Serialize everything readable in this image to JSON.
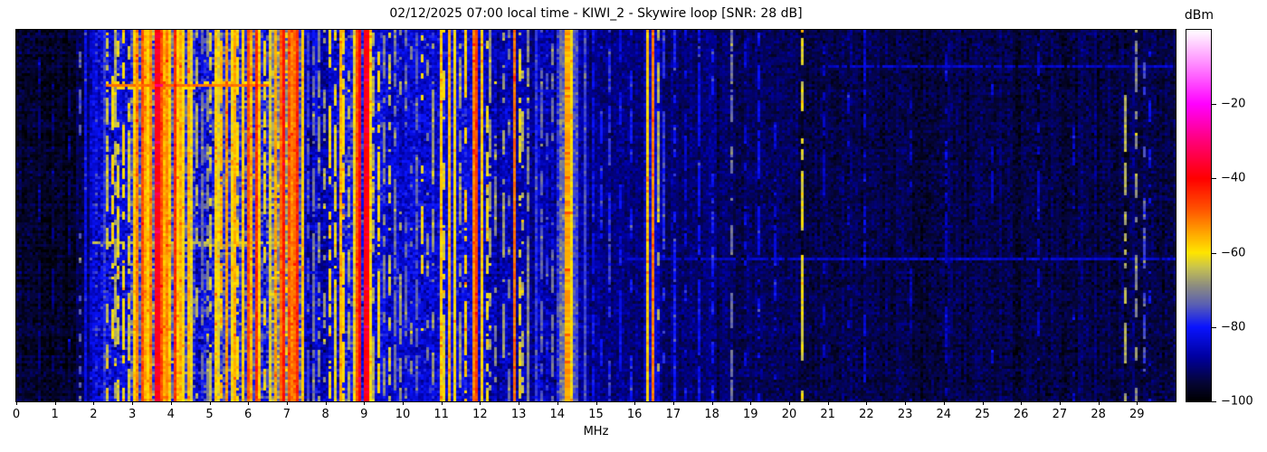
{
  "title": "02/12/2025 07:00 local time - KIWI_2 - Skywire loop [SNR: 28 dB]",
  "axes": {
    "xlabel": "MHz",
    "x_ticks": [
      0,
      1,
      2,
      3,
      4,
      5,
      6,
      7,
      8,
      9,
      10,
      11,
      12,
      13,
      14,
      15,
      16,
      17,
      18,
      19,
      20,
      21,
      22,
      23,
      24,
      25,
      26,
      27,
      28,
      29
    ]
  },
  "colorbar": {
    "label": "dBm",
    "min": -100,
    "max": 0,
    "ticks": [
      {
        "v": -20,
        "label": "−20"
      },
      {
        "v": -40,
        "label": "−40"
      },
      {
        "v": -60,
        "label": "−60"
      },
      {
        "v": -80,
        "label": "−80"
      },
      {
        "v": -100,
        "label": "−100"
      }
    ]
  },
  "chart_data": {
    "type": "heatmap",
    "subtype": "radio-spectrogram-waterfall",
    "title": "02/12/2025 07:00 local time - KIWI_2 - Skywire loop [SNR: 28 dB]",
    "xlabel": "MHz",
    "x_range": [
      0,
      30
    ],
    "value_label": "dBm",
    "value_range": [
      -100,
      0
    ],
    "snr_db": 28,
    "cols": 427,
    "rows": 137,
    "colormap_stops": [
      [
        -100,
        "#000000"
      ],
      [
        -95,
        "#050536"
      ],
      [
        -88,
        "#0000a0"
      ],
      [
        -80,
        "#0a14ff"
      ],
      [
        -74,
        "#5a5fb4"
      ],
      [
        -69,
        "#8c8c82"
      ],
      [
        -64,
        "#c8c350"
      ],
      [
        -60,
        "#ffe600"
      ],
      [
        -55,
        "#ffaa00"
      ],
      [
        -48,
        "#ff5000"
      ],
      [
        -40,
        "#ff0000"
      ],
      [
        -30,
        "#ff0078"
      ],
      [
        -20,
        "#ff00ff"
      ],
      [
        -10,
        "#ff82ff"
      ],
      [
        0,
        "#ffffff"
      ]
    ],
    "noise_floor_dbm": [
      [
        0,
        -96
      ],
      [
        1.5,
        -96
      ],
      [
        1.62,
        -93
      ],
      [
        1.88,
        -92
      ],
      [
        1.95,
        -86
      ],
      [
        2.1,
        -82
      ],
      [
        2.5,
        -84
      ],
      [
        2.92,
        -83
      ],
      [
        3.0,
        -75
      ],
      [
        3.6,
        -72
      ],
      [
        4.1,
        -74
      ],
      [
        4.55,
        -78
      ],
      [
        4.7,
        -83
      ],
      [
        5.05,
        -82
      ],
      [
        5.15,
        -77
      ],
      [
        6.3,
        -76
      ],
      [
        6.42,
        -82
      ],
      [
        6.6,
        -74
      ],
      [
        6.75,
        -69
      ],
      [
        7.32,
        -71
      ],
      [
        7.42,
        -86
      ],
      [
        8.3,
        -85
      ],
      [
        8.4,
        -80
      ],
      [
        9.15,
        -79
      ],
      [
        9.25,
        -83
      ],
      [
        10.0,
        -84
      ],
      [
        10.9,
        -85
      ],
      [
        11.0,
        -83
      ],
      [
        12.2,
        -84
      ],
      [
        12.35,
        -87
      ],
      [
        13.95,
        -87
      ],
      [
        14.05,
        -74
      ],
      [
        14.45,
        -74
      ],
      [
        14.6,
        -89
      ],
      [
        15.5,
        -90
      ],
      [
        16.2,
        -90
      ],
      [
        16.28,
        -84
      ],
      [
        16.6,
        -84
      ],
      [
        16.72,
        -91
      ],
      [
        18.0,
        -92
      ],
      [
        20.0,
        -93
      ],
      [
        21.5,
        -94
      ],
      [
        25.0,
        -94
      ],
      [
        30,
        -94
      ]
    ],
    "noise_sigma_dbm": [
      [
        0,
        3.2
      ],
      [
        2.05,
        5.5
      ],
      [
        2.95,
        7
      ],
      [
        7.35,
        4.5
      ],
      [
        8.3,
        6
      ],
      [
        9.2,
        4.5
      ],
      [
        12.2,
        4
      ],
      [
        14.6,
        3.2
      ]
    ],
    "carriers": [
      [
        0.55,
        -90,
        "o"
      ],
      [
        0.92,
        -91,
        "o"
      ],
      [
        1.3,
        -90,
        "o"
      ],
      [
        1.6,
        -74,
        "o"
      ],
      [
        1.76,
        -82
      ],
      [
        1.9,
        -84,
        "d"
      ],
      [
        2.22,
        -78
      ],
      [
        2.3,
        -64,
        "d"
      ],
      [
        2.44,
        -60,
        "d"
      ],
      [
        2.52,
        -66,
        "d"
      ],
      [
        2.62,
        -62,
        "d"
      ],
      [
        2.75,
        -60,
        "d"
      ],
      [
        2.86,
        -63,
        "d"
      ],
      [
        3.0,
        -58
      ],
      [
        3.06,
        -52
      ],
      [
        3.12,
        -60
      ],
      [
        3.2,
        -48
      ],
      [
        3.3,
        -55
      ],
      [
        3.38,
        -58
      ],
      [
        3.46,
        -52
      ],
      [
        3.55,
        -50
      ],
      [
        3.65,
        -38,
        "s",
        2
      ],
      [
        3.73,
        -48
      ],
      [
        3.8,
        -56
      ],
      [
        3.88,
        -52
      ],
      [
        3.95,
        -58
      ],
      [
        4.05,
        -45
      ],
      [
        4.12,
        -58
      ],
      [
        4.2,
        -55
      ],
      [
        4.3,
        -60
      ],
      [
        4.4,
        -56
      ],
      [
        4.5,
        -62
      ],
      [
        4.62,
        -66,
        "d"
      ],
      [
        4.78,
        -72,
        "d"
      ],
      [
        4.9,
        -70,
        "d"
      ],
      [
        5.0,
        -64,
        "d"
      ],
      [
        5.1,
        -58
      ],
      [
        5.18,
        -62
      ],
      [
        5.3,
        -56,
        "d"
      ],
      [
        5.42,
        -54
      ],
      [
        5.52,
        -60
      ],
      [
        5.62,
        -56
      ],
      [
        5.72,
        -60,
        "d"
      ],
      [
        5.82,
        -58
      ],
      [
        5.95,
        -48
      ],
      [
        6.07,
        -56
      ],
      [
        6.16,
        -45
      ],
      [
        6.28,
        -58
      ],
      [
        6.38,
        -62,
        "d"
      ],
      [
        6.55,
        -62
      ],
      [
        6.68,
        -55
      ],
      [
        6.8,
        -50
      ],
      [
        6.9,
        -42
      ],
      [
        7.02,
        -48
      ],
      [
        7.12,
        -52
      ],
      [
        7.2,
        -50
      ],
      [
        7.27,
        -44
      ],
      [
        7.35,
        -58
      ],
      [
        7.5,
        -76,
        "d"
      ],
      [
        7.65,
        -72,
        "d"
      ],
      [
        7.8,
        -70,
        "d"
      ],
      [
        7.95,
        -68,
        "o"
      ],
      [
        8.1,
        -60,
        "d"
      ],
      [
        8.22,
        -62,
        "d"
      ],
      [
        8.35,
        -56
      ],
      [
        8.45,
        -60,
        "d"
      ],
      [
        8.6,
        -66,
        "d"
      ],
      [
        8.72,
        -62
      ],
      [
        8.8,
        -48
      ],
      [
        8.85,
        -40
      ],
      [
        9.0,
        -38,
        "s",
        2
      ],
      [
        9.1,
        -60
      ],
      [
        9.22,
        -66,
        "d"
      ],
      [
        9.35,
        -60,
        "d"
      ],
      [
        9.45,
        -70,
        "d"
      ],
      [
        9.6,
        -64,
        "d"
      ],
      [
        9.75,
        -72,
        "d"
      ],
      [
        9.9,
        -68,
        "o"
      ],
      [
        10.05,
        -73,
        "d"
      ],
      [
        10.2,
        -70,
        "o"
      ],
      [
        10.35,
        -74,
        "d"
      ],
      [
        10.5,
        -60,
        "o"
      ],
      [
        10.62,
        -70,
        "o"
      ],
      [
        10.78,
        -68,
        "d"
      ],
      [
        10.95,
        -58
      ],
      [
        11.05,
        -62,
        "d"
      ],
      [
        11.2,
        -56
      ],
      [
        11.32,
        -60
      ],
      [
        11.45,
        -68,
        "d"
      ],
      [
        11.6,
        -58,
        "d"
      ],
      [
        11.78,
        -52
      ],
      [
        11.9,
        -46
      ],
      [
        12.02,
        -58
      ],
      [
        12.12,
        -62,
        "d"
      ],
      [
        12.25,
        -68,
        "d"
      ],
      [
        12.4,
        -70,
        "o"
      ],
      [
        12.55,
        -68,
        "d"
      ],
      [
        12.7,
        -72,
        "o"
      ],
      [
        12.88,
        -50
      ],
      [
        13.0,
        -62,
        "d"
      ],
      [
        13.1,
        -66,
        "o"
      ],
      [
        13.22,
        -70,
        "d"
      ],
      [
        13.4,
        -78
      ],
      [
        13.55,
        -74,
        "d"
      ],
      [
        13.7,
        -76,
        "o"
      ],
      [
        13.85,
        -72,
        "o"
      ],
      [
        14.2,
        -55,
        "s",
        2
      ],
      [
        14.32,
        -60
      ],
      [
        14.5,
        -77
      ],
      [
        14.68,
        -76
      ],
      [
        14.9,
        -82,
        "d"
      ],
      [
        15.1,
        -80,
        "o"
      ],
      [
        15.35,
        -78,
        "d"
      ],
      [
        15.6,
        -82,
        "d"
      ],
      [
        15.85,
        -80,
        "o"
      ],
      [
        16.3,
        -58
      ],
      [
        16.42,
        -52
      ],
      [
        16.55,
        -66,
        "d"
      ],
      [
        16.75,
        -78,
        "d"
      ],
      [
        17.0,
        -80,
        "d"
      ],
      [
        17.3,
        -84,
        "o"
      ],
      [
        17.6,
        -82,
        "d"
      ],
      [
        18.0,
        -80,
        "d"
      ],
      [
        18.45,
        -72,
        "d"
      ],
      [
        18.8,
        -84,
        "o"
      ],
      [
        19.2,
        -82,
        "d"
      ],
      [
        19.6,
        -84,
        "o"
      ],
      [
        20.3,
        -62,
        "d"
      ],
      [
        20.9,
        -86,
        "o"
      ],
      [
        21.5,
        -86,
        "o"
      ],
      [
        21.9,
        -84,
        "d"
      ],
      [
        23.1,
        -86,
        "o"
      ],
      [
        24.0,
        -86,
        "o"
      ],
      [
        25.2,
        -86,
        "o"
      ],
      [
        26.4,
        -86,
        "o"
      ],
      [
        27.3,
        -86,
        "o"
      ],
      [
        28.7,
        -66,
        "o"
      ],
      [
        28.95,
        -70,
        "o"
      ],
      [
        29.15,
        -76,
        "o"
      ],
      [
        29.3,
        -82,
        "o"
      ]
    ],
    "streaks": [
      {
        "row": 19,
        "f0": 2.35,
        "f1": 6.55,
        "dbm": -58,
        "p": 0.55
      },
      {
        "row": 20,
        "f0": 2.35,
        "f1": 6.55,
        "dbm": -50,
        "p": 0.95
      },
      {
        "row": 21,
        "f0": 2.5,
        "f1": 4.8,
        "dbm": -60,
        "p": 0.45
      },
      {
        "row": 19,
        "f0": 3.5,
        "f1": 3.8,
        "dbm": -46,
        "p": 1
      },
      {
        "row": 20,
        "f0": 3.6,
        "f1": 3.72,
        "dbm": -30,
        "p": 1
      },
      {
        "row": 21,
        "f0": 3.5,
        "f1": 3.8,
        "dbm": -50,
        "p": 1
      },
      {
        "row": 22,
        "f0": 3.55,
        "f1": 3.75,
        "dbm": -55,
        "p": 1
      },
      {
        "row": 78,
        "f0": 1.9,
        "f1": 7.3,
        "dbm": -64,
        "p": 0.55
      },
      {
        "row": 79,
        "f0": 1.9,
        "f1": 7.3,
        "dbm": -67,
        "p": 0.4
      },
      {
        "row": 84,
        "f0": 15.8,
        "f1": 29.95,
        "dbm": -84,
        "p": 0.9
      },
      {
        "row": 13,
        "f0": 21.0,
        "f1": 29.95,
        "dbm": -85,
        "p": 0.85
      }
    ]
  }
}
